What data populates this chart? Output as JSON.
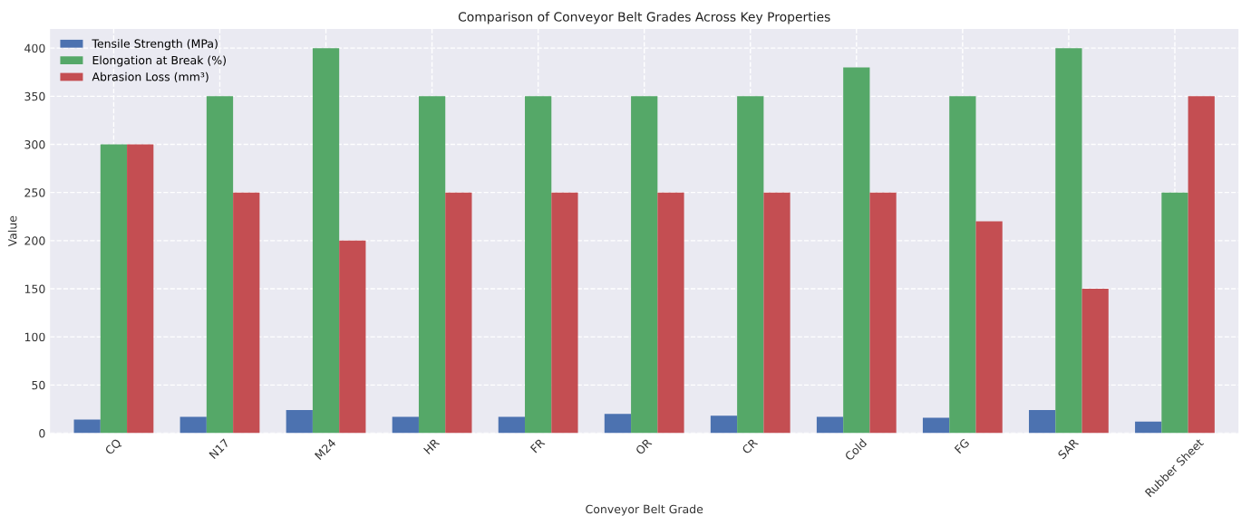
{
  "chart_data": {
    "type": "bar",
    "title": "Comparison of Conveyor Belt Grades Across Key Properties",
    "xlabel": "Conveyor Belt Grade",
    "ylabel": "Value",
    "categories": [
      "CQ",
      "N17",
      "M24",
      "HR",
      "FR",
      "OR",
      "CR",
      "Cold",
      "FG",
      "SAR",
      "Rubber Sheet"
    ],
    "series": [
      {
        "name": "Tensile Strength (MPa)",
        "color": "#4c72b0",
        "values": [
          14,
          17,
          24,
          17,
          17,
          20,
          18,
          17,
          16,
          24,
          12
        ]
      },
      {
        "name": "Elongation at Break (%)",
        "color": "#55a868",
        "values": [
          300,
          350,
          400,
          350,
          350,
          350,
          350,
          380,
          350,
          400,
          250
        ]
      },
      {
        "name": "Abrasion Loss (mm³)",
        "color": "#c44e52",
        "values": [
          300,
          250,
          200,
          250,
          250,
          250,
          250,
          250,
          220,
          150,
          350
        ]
      }
    ],
    "ylim": [
      0,
      420
    ],
    "yticks": [
      0,
      50,
      100,
      150,
      200,
      250,
      300,
      350,
      400
    ],
    "grid": true,
    "line_style": "dashed",
    "legend": "top left"
  }
}
